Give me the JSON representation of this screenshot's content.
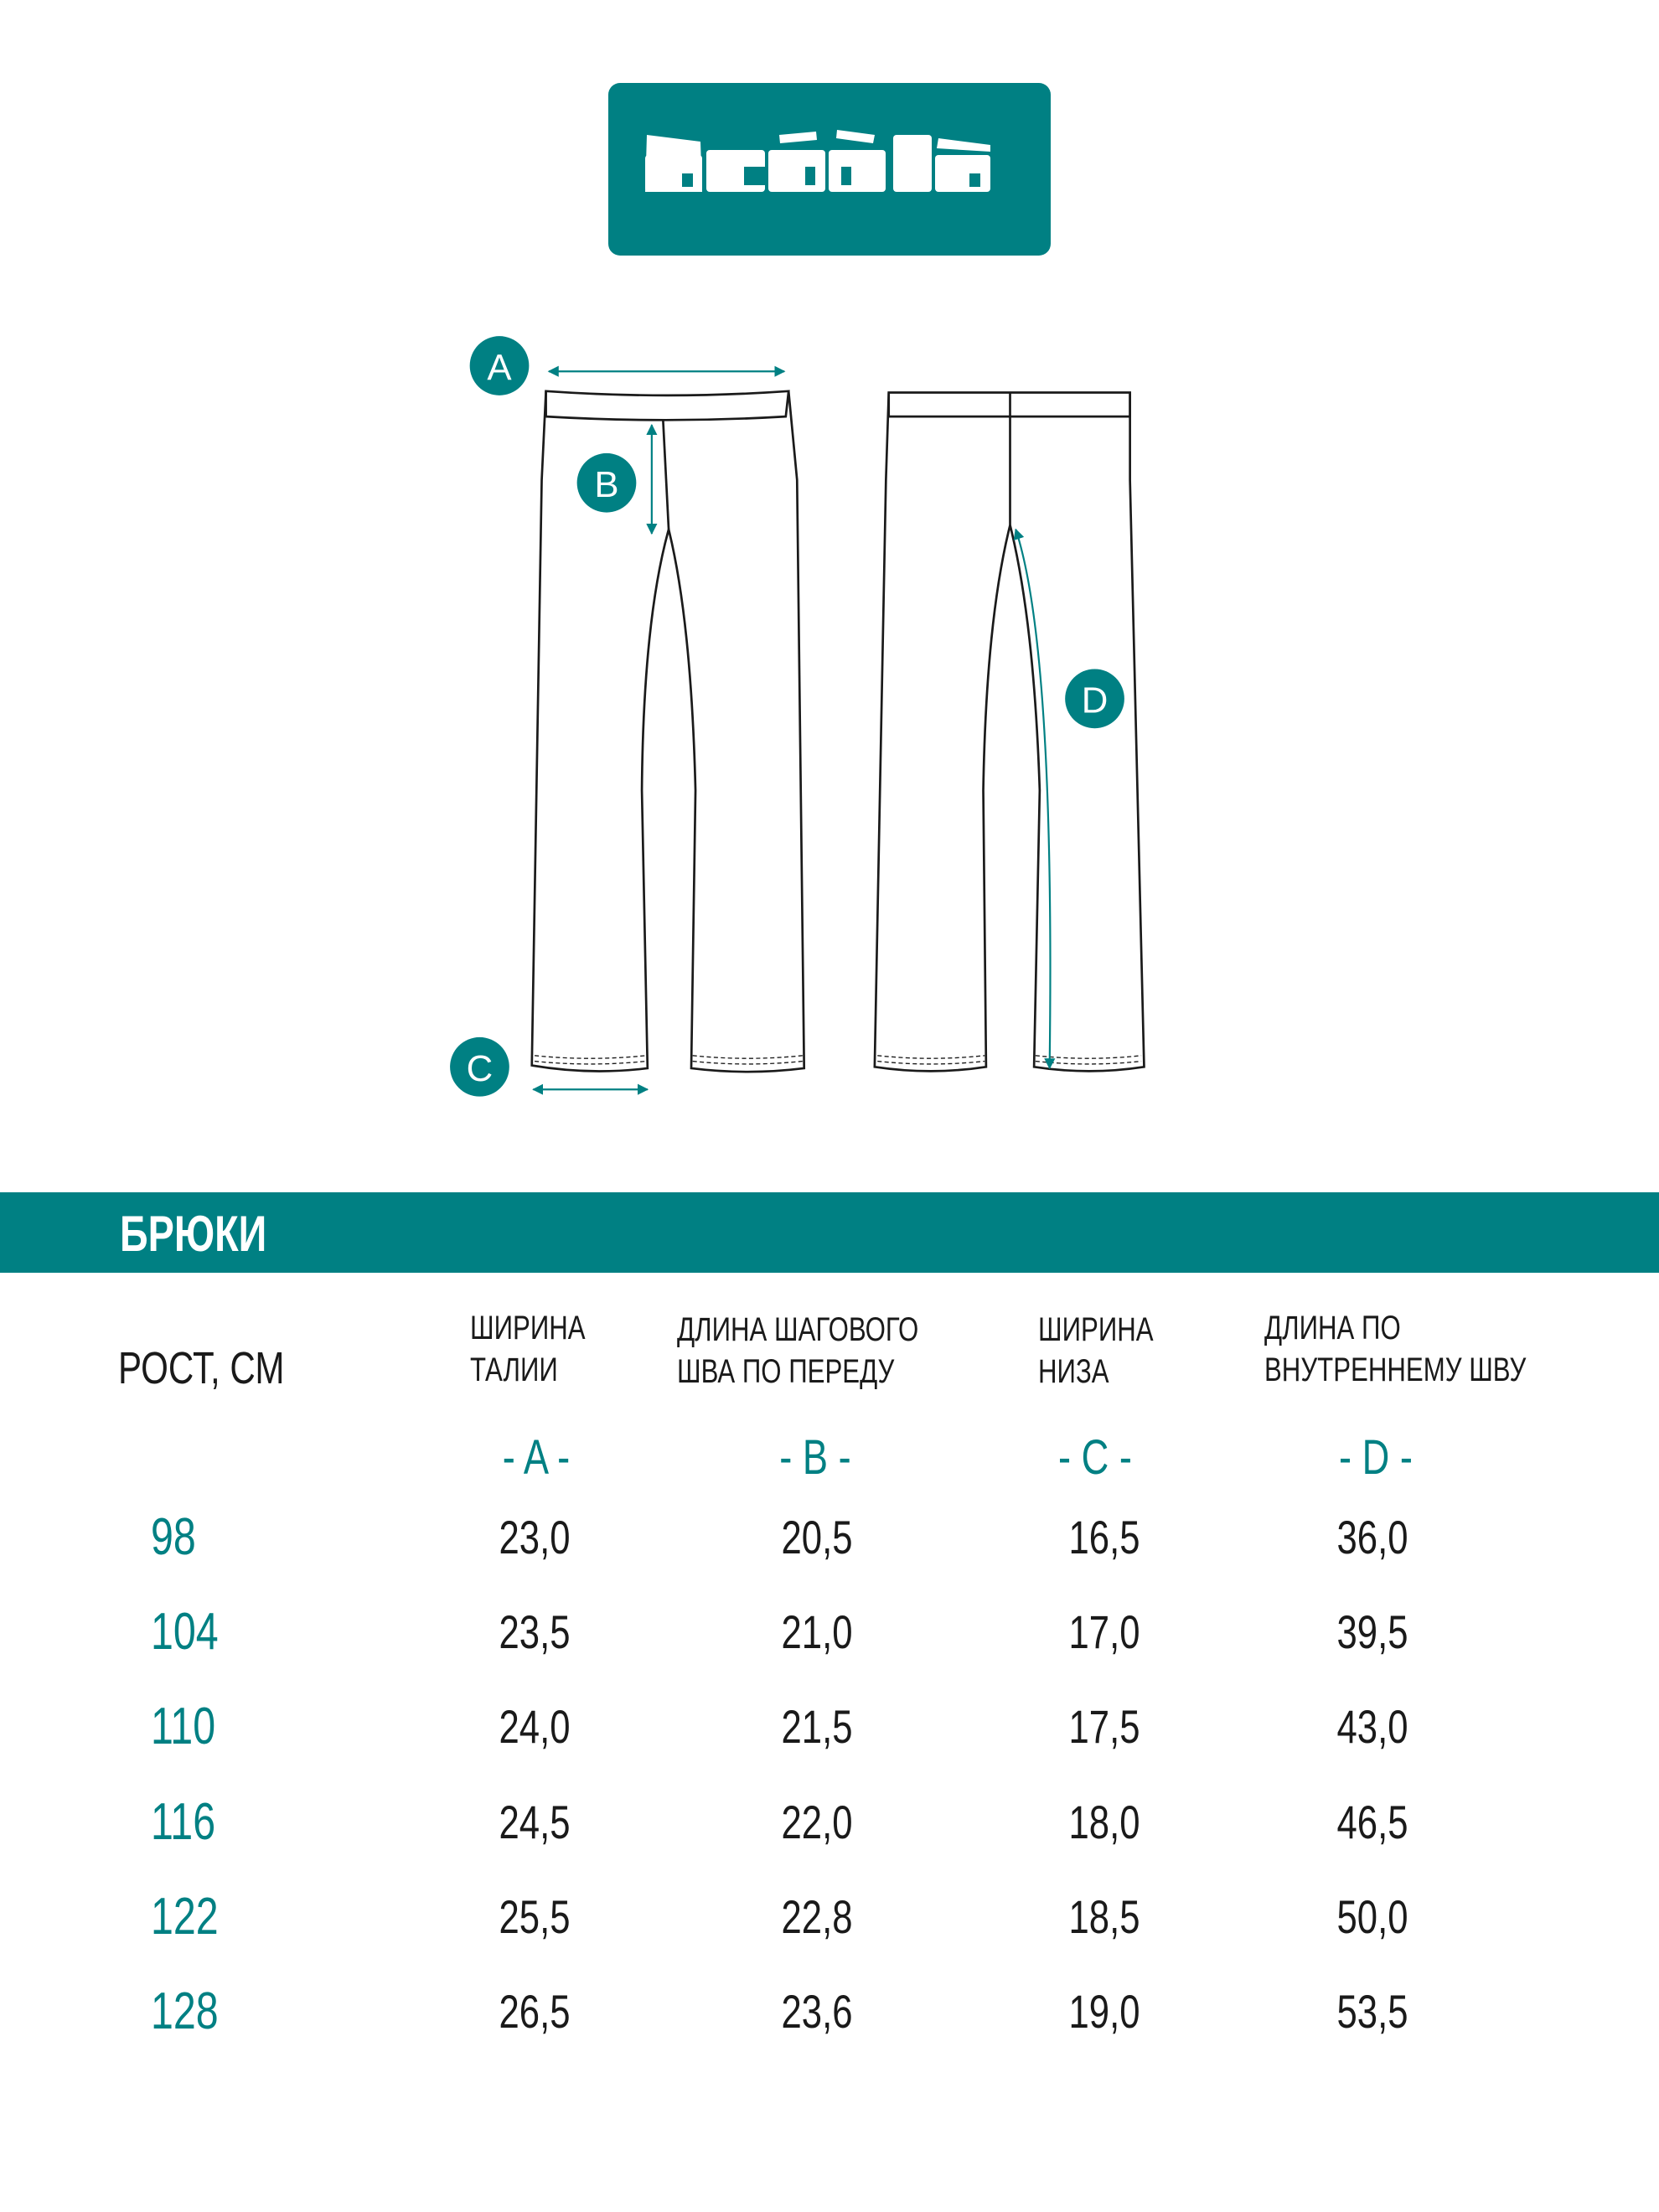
{
  "brand": {
    "logo_text": "acòòla",
    "color": "#008083"
  },
  "diagram": {
    "markers": [
      "A",
      "B",
      "C",
      "D"
    ]
  },
  "section": {
    "title": "БРЮКИ"
  },
  "table": {
    "row_header": "РОСТ, СМ",
    "columns": [
      {
        "line1": "ШИРИНА",
        "line2": "ТАЛИИ",
        "letter": "- A -"
      },
      {
        "line1": "ДЛИНА ШАГОВОГО",
        "line2": "ШВА ПО ПЕРЕДУ",
        "letter": "- B -"
      },
      {
        "line1": "ШИРИНА",
        "line2": "НИЗА",
        "letter": "- C -"
      },
      {
        "line1": "ДЛИНА ПО",
        "line2": "ВНУТРЕННЕМУ ШВУ",
        "letter": "- D -"
      }
    ],
    "rows": [
      {
        "height": "98",
        "values": [
          "23,0",
          "20,5",
          "16,5",
          "36,0"
        ]
      },
      {
        "height": "104",
        "values": [
          "23,5",
          "21,0",
          "17,0",
          "39,5"
        ]
      },
      {
        "height": "110",
        "values": [
          "24,0",
          "21,5",
          "17,5",
          "43,0"
        ]
      },
      {
        "height": "116",
        "values": [
          "24,5",
          "22,0",
          "18,0",
          "46,5"
        ]
      },
      {
        "height": "122",
        "values": [
          "25,5",
          "22,8",
          "18,5",
          "50,0"
        ]
      },
      {
        "height": "128",
        "values": [
          "26,5",
          "23,6",
          "19,0",
          "53,5"
        ]
      }
    ]
  }
}
